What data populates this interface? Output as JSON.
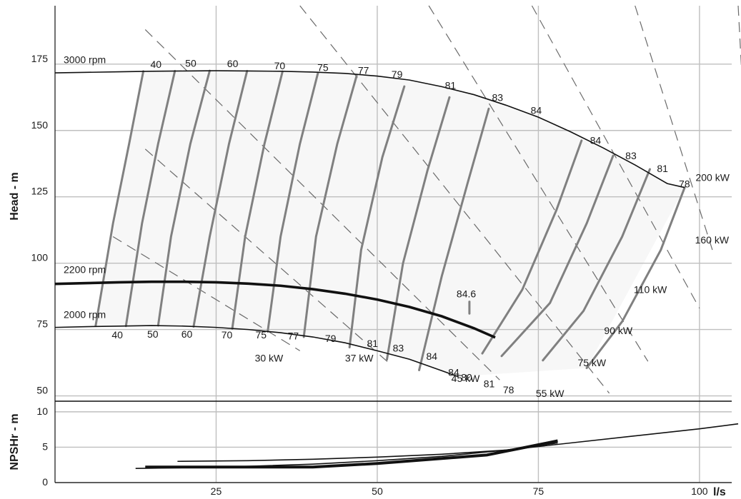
{
  "chart_data": {
    "type": "line",
    "x_unit_label": "l/s",
    "colors": {
      "speed": "#111111",
      "efficiency": "#808080",
      "power": "#6a6a6a",
      "grid": "#bfbfbf",
      "band": "#f7f7f7"
    },
    "head_panel": {
      "ylabel": "Head - m",
      "xlim": [
        0,
        105
      ],
      "ylim": [
        48,
        197
      ],
      "x_ticks": [
        25,
        50,
        75,
        100
      ],
      "y_ticks": [
        50,
        75,
        100,
        125,
        150,
        175
      ],
      "speed_curves": [
        {
          "label": "3000 rpm",
          "label_at": [
            1,
            175.4
          ],
          "bold": false,
          "points": [
            [
              0,
              171.7
            ],
            [
              5,
              171.9
            ],
            [
              10,
              172.1
            ],
            [
              15,
              172.3
            ],
            [
              20,
              172.4
            ],
            [
              25,
              172.5
            ],
            [
              30,
              172.4
            ],
            [
              35,
              172.3
            ],
            [
              40,
              172
            ],
            [
              45,
              171.5
            ],
            [
              50,
              170.5
            ],
            [
              55,
              169
            ],
            [
              60,
              166.5
            ],
            [
              65,
              163.5
            ],
            [
              70,
              159.5
            ],
            [
              75,
              155
            ],
            [
              80,
              149.5
            ],
            [
              85,
              143.5
            ],
            [
              90,
              137
            ],
            [
              95,
              130
            ],
            [
              97.7,
              128.5
            ]
          ]
        },
        {
          "label": "2200 rpm",
          "label_at": [
            1,
            96.3
          ],
          "bold": true,
          "points": [
            [
              0,
              92.2
            ],
            [
              5,
              92.5
            ],
            [
              10,
              92.8
            ],
            [
              15,
              93
            ],
            [
              20,
              93
            ],
            [
              25,
              92.8
            ],
            [
              30,
              92.3
            ],
            [
              35,
              91.5
            ],
            [
              40,
              90.2
            ],
            [
              45,
              88.5
            ],
            [
              50,
              86.3
            ],
            [
              55,
              83.5
            ],
            [
              60,
              80
            ],
            [
              65,
              75.5
            ],
            [
              68.3,
              72
            ]
          ]
        },
        {
          "label": "2000 rpm",
          "label_at": [
            1,
            79.4
          ],
          "bold": false,
          "points": [
            [
              0,
              75.8
            ],
            [
              5,
              76.1
            ],
            [
              10,
              76.3
            ],
            [
              15,
              76.5
            ],
            [
              20,
              76.3
            ],
            [
              25,
              75.8
            ],
            [
              30,
              75
            ],
            [
              35,
              73.8
            ],
            [
              40,
              72.2
            ],
            [
              45,
              70
            ],
            [
              50,
              67
            ],
            [
              55,
              63.8
            ],
            [
              60,
              59.5
            ],
            [
              62.5,
              57.3
            ]
          ]
        }
      ],
      "efficiency_contours": [
        {
          "label": "40",
          "points": [
            [
              13.7,
              172.3
            ],
            [
              11.5,
              145
            ],
            [
              9,
              115
            ],
            [
              6.3,
              76.4
            ]
          ]
        },
        {
          "label": "50",
          "points": [
            [
              18.6,
              172.4
            ],
            [
              16,
              145
            ],
            [
              13.5,
              115
            ],
            [
              11,
              76.3
            ]
          ]
        },
        {
          "label": "60",
          "points": [
            [
              24,
              172.5
            ],
            [
              21,
              145
            ],
            [
              18,
              110
            ],
            [
              16,
              76.5
            ]
          ]
        },
        {
          "label": "70",
          "points": [
            [
              29.8,
              172.4
            ],
            [
              27,
              145
            ],
            [
              24,
              110
            ],
            [
              21.5,
              76.1
            ]
          ]
        },
        {
          "label": "75",
          "points": [
            [
              35.3,
              172.2
            ],
            [
              32.5,
              145
            ],
            [
              29.5,
              110
            ],
            [
              27.5,
              75.3
            ]
          ]
        },
        {
          "label": "77",
          "points": [
            [
              40.8,
              171.7
            ],
            [
              38,
              145
            ],
            [
              35,
              110
            ],
            [
              33,
              74.2
            ]
          ]
        },
        {
          "label": "79",
          "points": [
            [
              46.8,
              170.6
            ],
            [
              43.8,
              145
            ],
            [
              40.5,
              110
            ],
            [
              38.6,
              72.2
            ]
          ]
        },
        {
          "label": "81",
          "points": [
            [
              54.2,
              166.6
            ],
            [
              50.8,
              140
            ],
            [
              47.5,
              105
            ],
            [
              45.7,
              68.3
            ]
          ]
        },
        {
          "label": "83",
          "points": [
            [
              61.2,
              162.5
            ],
            [
              57.8,
              135
            ],
            [
              54,
              100
            ],
            [
              51.5,
              63.7
            ]
          ]
        },
        {
          "label": "84",
          "points": [
            [
              67.3,
              158.2
            ],
            [
              64,
              130
            ],
            [
              60,
              95
            ],
            [
              56.5,
              59.7
            ]
          ]
        },
        {
          "label": "84",
          "points": [
            [
              81.7,
              146.2
            ],
            [
              77.8,
              120
            ],
            [
              72.5,
              90
            ],
            [
              66.3,
              66
            ]
          ]
        },
        {
          "label": "83",
          "points": [
            [
              86.6,
              140.5
            ],
            [
              82.5,
              115
            ],
            [
              76.8,
              85
            ],
            [
              69.3,
              65
            ]
          ]
        },
        {
          "label": "81",
          "points": [
            [
              92.3,
              135.4
            ],
            [
              88,
              110
            ],
            [
              82,
              82
            ],
            [
              75.7,
              63.4
            ]
          ]
        },
        {
          "label": "78",
          "points": [
            [
              97.7,
              128.5
            ],
            [
              94,
              105
            ],
            [
              88,
              78
            ],
            [
              82.5,
              60.5
            ]
          ]
        }
      ],
      "peak_efficiency": {
        "label": "84.6",
        "x": 64.3,
        "y1": 85.5,
        "y2": 81
      },
      "power_lines": [
        {
          "label": "30 kW",
          "points": [
            [
              9,
              110
            ],
            [
              38,
              67
            ]
          ]
        },
        {
          "label": "37 kW",
          "points": [
            [
              14,
              143
            ],
            [
              52,
              62
            ]
          ]
        },
        {
          "label": "45 kW",
          "points": [
            [
              14,
              188
            ],
            [
              69,
              56
            ]
          ]
        },
        {
          "label": "55 kW",
          "points": [
            [
              38,
              197
            ],
            [
              86,
              51
            ]
          ]
        },
        {
          "label": "75 kW",
          "points": [
            [
              58,
              197
            ],
            [
              92,
              63
            ]
          ]
        },
        {
          "label": "90 kW",
          "points": [
            [
              74,
              197
            ],
            [
              100,
              83
            ]
          ]
        },
        {
          "label": "110 kW",
          "points": [
            [
              90,
              197
            ],
            [
              102,
              105
            ]
          ]
        },
        {
          "label": "160 kW",
          "points": [
            [
              106,
              197
            ],
            [
              107,
              151
            ]
          ]
        },
        {
          "label": "200 kW",
          "points": [
            [
              118,
              197
            ],
            [
              107,
              181
            ]
          ]
        }
      ],
      "labels": [
        {
          "text": "40",
          "x": 14.8,
          "y": 173.6
        },
        {
          "text": "50",
          "x": 20.2,
          "y": 174
        },
        {
          "text": "60",
          "x": 26.7,
          "y": 173.9
        },
        {
          "text": "70",
          "x": 34,
          "y": 173.1
        },
        {
          "text": "75",
          "x": 40.7,
          "y": 172.4
        },
        {
          "text": "77",
          "x": 47,
          "y": 171.3
        },
        {
          "text": "79",
          "x": 52.2,
          "y": 169.8
        },
        {
          "text": "81",
          "x": 60.5,
          "y": 165.6
        },
        {
          "text": "83",
          "x": 67.8,
          "y": 161.1
        },
        {
          "text": "84",
          "x": 73.8,
          "y": 156.2
        },
        {
          "text": "84",
          "x": 83,
          "y": 145
        },
        {
          "text": "83",
          "x": 88.5,
          "y": 139.2
        },
        {
          "text": "81",
          "x": 93.4,
          "y": 134.3
        },
        {
          "text": "78",
          "x": 96.8,
          "y": 128.6
        },
        {
          "text": "40",
          "x": 8.8,
          "y": 71.7
        },
        {
          "text": "50",
          "x": 14.3,
          "y": 71.9
        },
        {
          "text": "60",
          "x": 19.6,
          "y": 71.9
        },
        {
          "text": "70",
          "x": 25.8,
          "y": 71.7
        },
        {
          "text": "75",
          "x": 31.1,
          "y": 71.7
        },
        {
          "text": "77",
          "x": 36.1,
          "y": 71.3
        },
        {
          "text": "79",
          "x": 41.9,
          "y": 70.3
        },
        {
          "text": "81",
          "x": 48.4,
          "y": 68.5
        },
        {
          "text": "83",
          "x": 52.4,
          "y": 66.7
        },
        {
          "text": "84",
          "x": 57.6,
          "y": 63.6
        },
        {
          "text": "84",
          "x": 61,
          "y": 57.5
        },
        {
          "text": "80",
          "x": 63,
          "y": 55.6
        },
        {
          "text": "81",
          "x": 66.5,
          "y": 53.3
        },
        {
          "text": "78",
          "x": 69.5,
          "y": 51
        },
        {
          "text": "30 kW",
          "x": 31,
          "y": 62.9
        },
        {
          "text": "37 kW",
          "x": 45,
          "y": 62.9
        },
        {
          "text": "45 kW",
          "x": 61.5,
          "y": 55.3
        },
        {
          "text": "55 kW",
          "x": 74.6,
          "y": 49.6
        },
        {
          "text": "75 kW",
          "x": 81.1,
          "y": 61.2
        },
        {
          "text": "90 kW",
          "x": 85.2,
          "y": 73.3
        },
        {
          "text": "110 kW",
          "x": 89.8,
          "y": 88.8
        },
        {
          "text": "160 kW",
          "x": 99.3,
          "y": 107.5
        },
        {
          "text": "200 kW",
          "x": 99.4,
          "y": 131
        }
      ]
    },
    "npsh_panel": {
      "ylabel": "NPSHr - m",
      "xlim": [
        0,
        105
      ],
      "ylim": [
        0,
        11.5
      ],
      "y_ticks": [
        0,
        5,
        10
      ],
      "curves": [
        {
          "bold": false,
          "points": [
            [
              12.5,
              2
            ],
            [
              20,
              2.1
            ],
            [
              30,
              2.3
            ],
            [
              40,
              2.6
            ],
            [
              50,
              3.1
            ],
            [
              60,
              3.7
            ],
            [
              70,
              4.6
            ],
            [
              78,
              5.6
            ]
          ]
        },
        {
          "bold": true,
          "points": [
            [
              14,
              2.2
            ],
            [
              25,
              2.2
            ],
            [
              40,
              2.2
            ],
            [
              50,
              2.7
            ],
            [
              60,
              3.4
            ],
            [
              67,
              3.9
            ],
            [
              72,
              4.8
            ],
            [
              78,
              5.9
            ]
          ]
        },
        {
          "bold": false,
          "points": [
            [
              19,
              3
            ],
            [
              30,
              3.1
            ],
            [
              40,
              3.3
            ],
            [
              50,
              3.6
            ],
            [
              60,
              4
            ],
            [
              70,
              4.6
            ],
            [
              80,
              5.6
            ],
            [
              90,
              6.6
            ],
            [
              100,
              7.6
            ],
            [
              106,
              8.3
            ]
          ]
        }
      ]
    }
  }
}
